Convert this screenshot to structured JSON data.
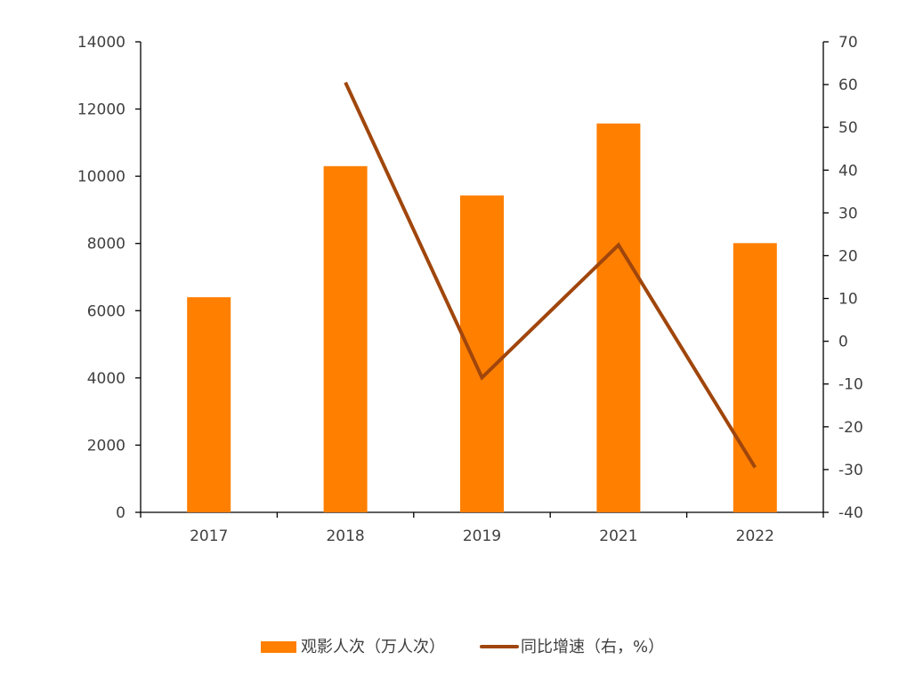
{
  "chart_data": {
    "type": "bar+line",
    "categories": [
      "2017",
      "2018",
      "2019",
      "2021",
      "2022"
    ],
    "series": [
      {
        "name": "观影人次（万人次）",
        "type": "bar",
        "axis": "left",
        "color": "#FF7F00",
        "values": [
          6400,
          10300,
          9430,
          11570,
          8010
        ]
      },
      {
        "name": "同比增速（右，%）",
        "type": "line",
        "axis": "right",
        "color": "#A0460C",
        "values": [
          null,
          60.5,
          -8.5,
          22.5,
          -29.5
        ]
      }
    ],
    "y_left": {
      "min": 0,
      "max": 14000,
      "step": 2000
    },
    "y_right": {
      "min": -40,
      "max": 70,
      "step": 10
    },
    "legend_position": "bottom",
    "grid": false,
    "title": "",
    "xlabel": "",
    "ylabel": ""
  }
}
